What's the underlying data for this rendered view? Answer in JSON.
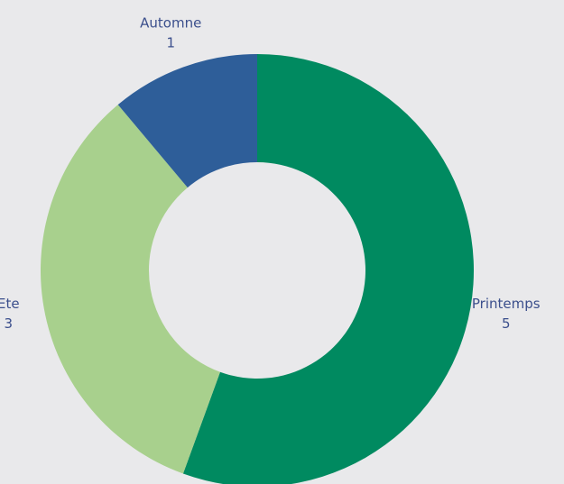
{
  "chart_data": {
    "type": "donut",
    "categories": [
      "Printemps",
      "Ete",
      "Automne"
    ],
    "values": [
      5,
      3,
      1
    ],
    "colors": [
      "#008a60",
      "#a8d08d",
      "#2e5e99"
    ]
  }
}
